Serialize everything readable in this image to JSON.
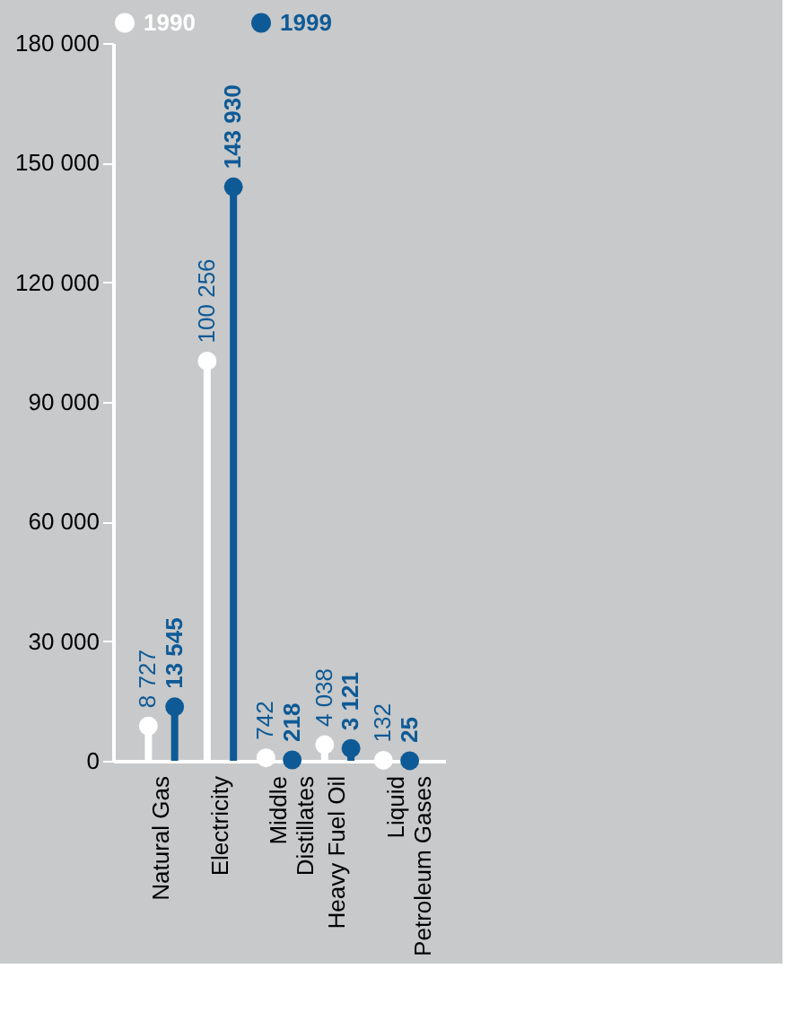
{
  "chart_data": {
    "type": "lollipop",
    "categories": [
      "Natural Gas",
      "Electricity",
      "Middle\nDistillates",
      "Heavy Fuel Oil",
      "Liquid\nPetroleum Gases"
    ],
    "series": [
      {
        "name": "1990",
        "color": "#ffffff",
        "values": [
          8727,
          100256,
          742,
          4038,
          132
        ],
        "value_labels": [
          "8 727",
          "100 256",
          "742",
          "4 038",
          "132"
        ]
      },
      {
        "name": "1999",
        "color": "#0e5a96",
        "values": [
          13545,
          143930,
          218,
          3121,
          25
        ],
        "value_labels": [
          "13 545",
          "143 930",
          "218",
          "3 121",
          "25"
        ]
      }
    ],
    "ylim": [
      0,
      180000
    ],
    "yticks": [
      {
        "value": 0,
        "label": "0"
      },
      {
        "value": 30000,
        "label": "30 000"
      },
      {
        "value": 60000,
        "label": "60 000"
      },
      {
        "value": 90000,
        "label": "90 000"
      },
      {
        "value": 120000,
        "label": "120 000"
      },
      {
        "value": 150000,
        "label": "150 000"
      },
      {
        "value": 180000,
        "label": "180 000"
      }
    ],
    "marker": "circle",
    "legend": "top left",
    "grid": false
  }
}
